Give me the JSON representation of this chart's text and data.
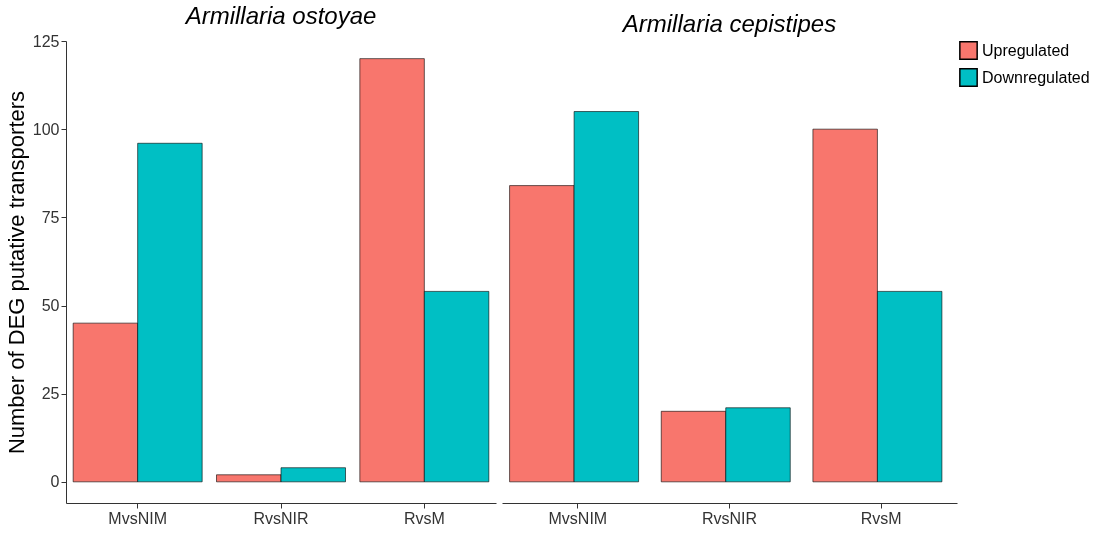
{
  "chart_data": [
    {
      "type": "bar",
      "title": "Armillaria ostoyae",
      "ylabel": "Number of DEG putative transporters",
      "categories": [
        "MvsNIM",
        "RvsNIR",
        "RvsM"
      ],
      "ylim": [
        -6,
        125
      ],
      "yticks": [
        0,
        25,
        50,
        75,
        100,
        125
      ],
      "grid": false,
      "legend": "top right",
      "series": [
        {
          "name": "Upregulated",
          "color": "#f8766d",
          "values": [
            45,
            2,
            120
          ]
        },
        {
          "name": "Downregulated",
          "color": "#00bfc4",
          "values": [
            96,
            4,
            54
          ]
        }
      ]
    },
    {
      "type": "bar",
      "title": "Armillaria cepistipes",
      "categories": [
        "MvsNIM",
        "RvsNIR",
        "RvsM"
      ],
      "ylim": [
        -6,
        125
      ],
      "tick_labels": "x",
      "grid": false,
      "legend": "top right",
      "series": [
        {
          "name": "Upregulated",
          "color": "#f8766d",
          "values": [
            84,
            20,
            100
          ]
        },
        {
          "name": "Downregulated",
          "color": "#00bfc4",
          "values": [
            105,
            21,
            54
          ]
        }
      ]
    }
  ]
}
